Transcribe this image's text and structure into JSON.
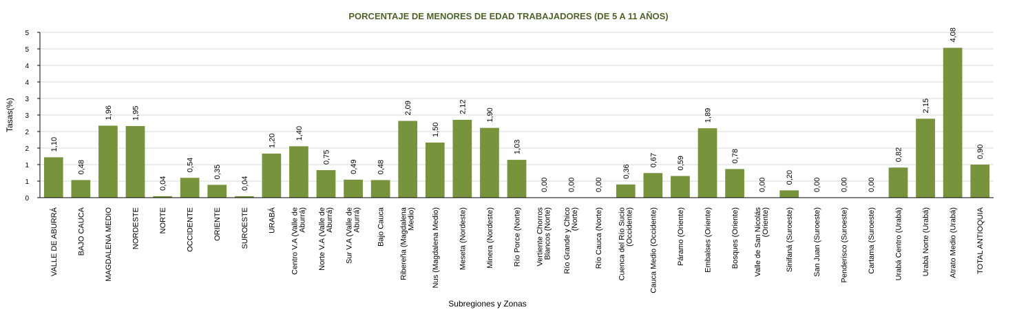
{
  "chart_data": {
    "type": "bar",
    "title": "PORCENTAJE DE MENORES DE EDAD TRABAJADORES (DE 5 A 11 AÑOS)",
    "xlabel": "Subregiones y Zonas",
    "ylabel": "Tasas(%)",
    "y_tick_labels": [
      "0",
      "1",
      "1",
      "2",
      "2",
      "3",
      "3",
      "4",
      "4",
      "5",
      "5"
    ],
    "ylim": [
      0,
      4.5
    ],
    "grid": true,
    "bar_color": "#77933c",
    "categories": [
      "VALLE DE ABURRÁ",
      "BAJO CAUCA",
      "MAGDALENA MEDIO",
      "NORDESTE",
      "NORTE",
      "OCCIDENTE",
      "ORIENTE",
      "SUROESTE",
      "URABÁ",
      "Centro V.A (Valle de Aburrá)",
      "Norte V.A (Valle de Aburrá)",
      "Sur  V.A (Valle de Aburrá)",
      "Bajo Cauca",
      "Ribereña  (Magdalena Medio)",
      "Nus  (Magdalena Medio)",
      "Meseta  (Nordeste)",
      "Minera  (Nordeste)",
      "Río Porce   (Norte)",
      "Vertiente Chorros Blancos (Norte)",
      "Río Grande y Chico (Norte)",
      "Río Cauca  (Norte)",
      "Cuenca del Río Sucio (Occidente)",
      "Cauca Medio (Occidente)",
      "Páramo  (Oriente)",
      "Embalses  (Oriente)",
      "Bosques  (Oriente)",
      "Valle de San Nicolás (Oriente)",
      "Sinifaná  (Suroeste)",
      "San Juan  (Suroeste)",
      "Penderisco  (Suroeste)",
      "Cartama  (Suroeste)",
      "Urabá Centro  (Urabá)",
      "Urabá Norte  (Urabá)",
      "Atrato Medio  (Urabá)",
      "TOTAL ANTIOQUIA"
    ],
    "values": [
      1.1,
      0.48,
      1.96,
      1.95,
      0.04,
      0.54,
      0.35,
      0.04,
      1.2,
      1.4,
      0.75,
      0.49,
      0.48,
      2.09,
      1.5,
      2.12,
      1.9,
      1.03,
      0.0,
      0.0,
      0.0,
      0.36,
      0.67,
      0.59,
      1.89,
      0.78,
      0.0,
      0.2,
      0.0,
      0.0,
      0.0,
      0.82,
      2.15,
      4.08,
      0.9
    ],
    "data_labels": [
      "1,10",
      "0,48",
      "1,96",
      "1,95",
      "0,04",
      "0,54",
      "0,35",
      "0,04",
      "1,20",
      "1,40",
      "0,75",
      "0,49",
      "0,48",
      "2,09",
      "1,50",
      "2,12",
      "1,90",
      "1,03",
      "0,00",
      "0,00",
      "0,00",
      "0,36",
      "0,67",
      "0,59",
      "1,89",
      "0,78",
      "0,00",
      "0,20",
      "0,00",
      "0,00",
      "0,00",
      "0,82",
      "2,15",
      "4,08",
      "0,90"
    ]
  }
}
